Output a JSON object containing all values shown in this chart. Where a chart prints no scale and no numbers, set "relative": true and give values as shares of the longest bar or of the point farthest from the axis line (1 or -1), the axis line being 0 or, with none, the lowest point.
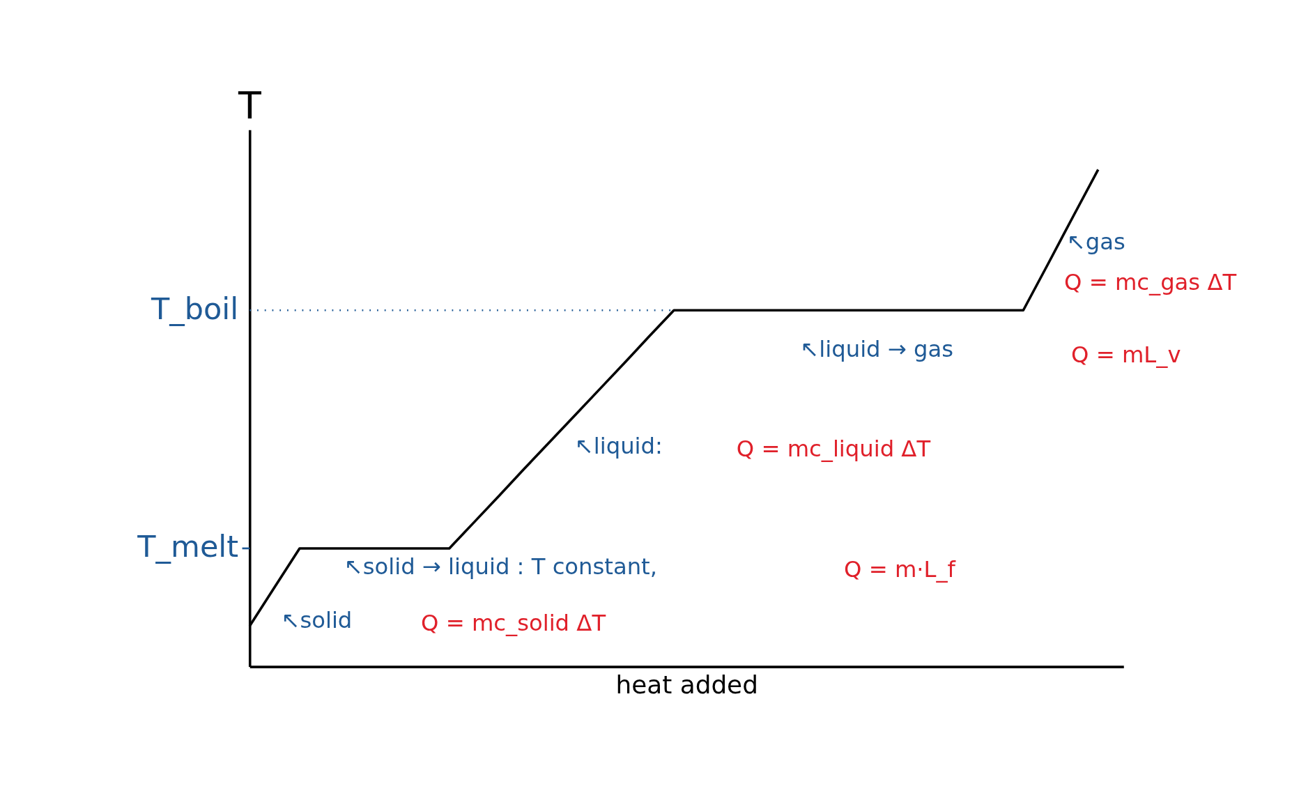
{
  "chart_data": {
    "type": "line",
    "relative": true,
    "xlabel": "heat added",
    "ylabel": "T",
    "tick_labels": false,
    "grid": false,
    "marker": "none",
    "line_style": "solid",
    "categories": [
      null,
      null,
      null,
      null,
      null,
      null,
      null,
      null,
      null,
      null,
      null,
      null,
      null,
      null,
      null,
      null,
      null,
      null,
      null,
      null,
      null,
      null,
      null,
      null,
      null,
      null,
      null,
      null,
      null,
      null,
      null,
      null,
      null,
      null,
      null
    ],
    "series": [
      {
        "color": "#000000",
        "values": [
          0.082,
          0.16,
          0.238,
          0.238,
          0.238,
          0.238,
          0.238,
          0.238,
          0.238,
          0.291,
          0.344,
          0.398,
          0.451,
          0.504,
          0.557,
          0.61,
          0.664,
          0.717,
          0.717,
          0.717,
          0.717,
          0.717,
          0.717,
          0.717,
          0.717,
          0.717,
          0.717,
          0.717,
          0.717,
          0.717,
          0.717,
          0.717,
          0.811,
          0.906,
          1
        ]
      }
    ],
    "ref_lines": [
      {
        "axis": "y",
        "value": 0.717,
        "label": "T_boil",
        "line_style": "dotted",
        "color": "#1f5a96"
      },
      {
        "axis": "y",
        "value": 0.238,
        "label": "T_melt",
        "color": "#1f5a96"
      }
    ],
    "annotations": [
      "↖gas",
      "Q = mc_gas ΔT",
      "↖liquid → gas",
      "Q = mL_v",
      "↖liquid:",
      "Q = mc_liquid ΔT",
      "↖solid → liquid  : T constant,",
      "Q = m·L_f",
      "↖solid",
      "Q = mc_solid ΔT"
    ]
  }
}
